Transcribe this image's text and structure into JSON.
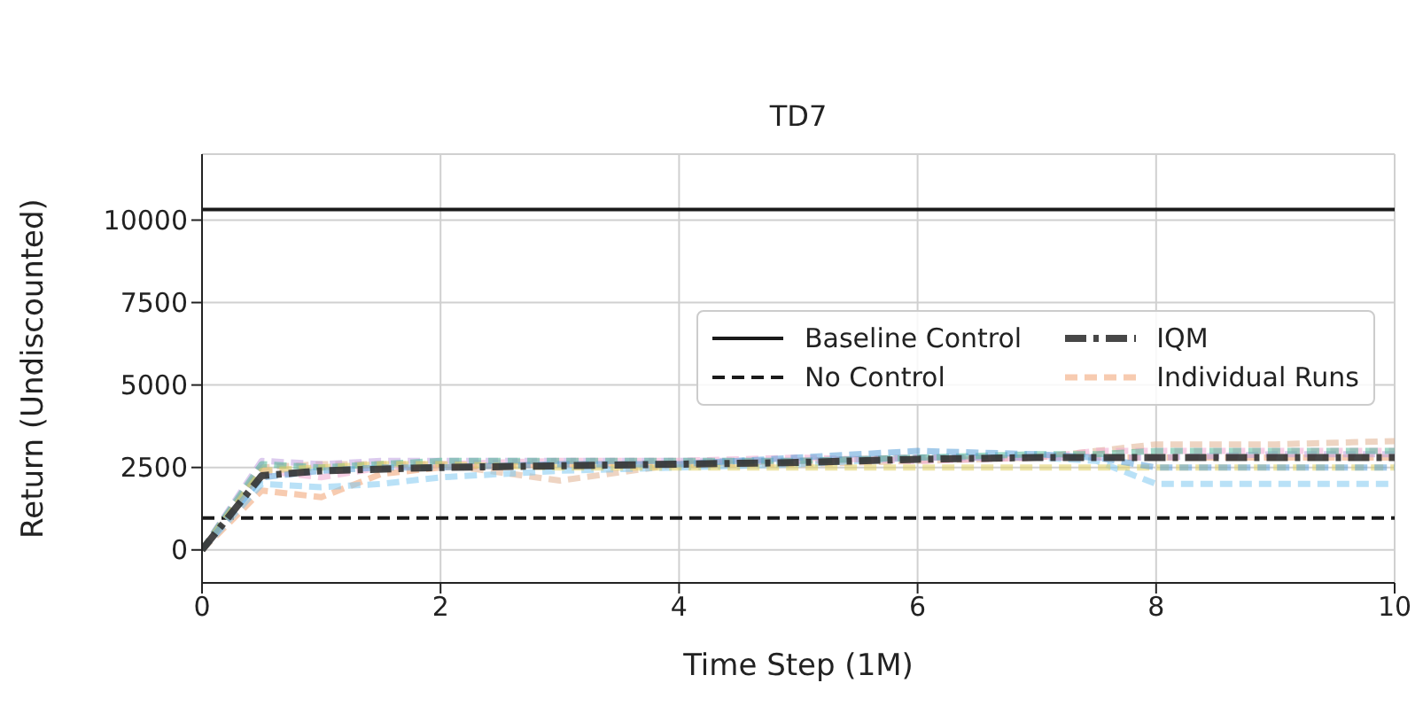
{
  "chart_data": {
    "type": "line",
    "title": "TD7",
    "xlabel": "Time Step (1M)",
    "ylabel": "Return (Undiscounted)",
    "xlim": [
      0,
      10
    ],
    "xticks": [
      0,
      2,
      4,
      6,
      8,
      10
    ],
    "ylim": [
      -1000,
      12000
    ],
    "yticks": [
      0,
      2500,
      5000,
      7500,
      10000
    ],
    "grid": true,
    "legend": "right",
    "marker": "none",
    "series": [
      {
        "name": "Baseline Control",
        "color": "#1a1a1a",
        "line_style": "solid",
        "x": [
          0,
          10
        ],
        "values": [
          10320,
          10320
        ]
      },
      {
        "name": "No Control",
        "color": "#1a1a1a",
        "line_style": "dashed",
        "x": [
          0,
          10
        ],
        "values": [
          970,
          970
        ]
      },
      {
        "name": "IQM",
        "color": "#333333",
        "line_style": "dashed",
        "x": [
          0,
          0.5,
          1,
          2,
          3,
          4,
          5,
          6,
          7,
          8,
          9,
          10
        ],
        "values": [
          0,
          2250,
          2400,
          2500,
          2550,
          2600,
          2650,
          2750,
          2800,
          2800,
          2800,
          2800
        ]
      },
      {
        "name": "Individual Runs",
        "color": "#f0a070",
        "line_style": "dashed",
        "x": [
          0,
          0.5,
          1,
          1.5,
          2,
          3,
          4,
          5,
          6,
          7,
          7.5,
          8,
          9,
          10
        ],
        "values": [
          0,
          1800,
          1600,
          2300,
          2500,
          2600,
          2600,
          2700,
          2800,
          2800,
          2800,
          2800,
          2800,
          2800
        ]
      },
      {
        "color": "#e0b090",
        "line_style": "dashed",
        "x": [
          0,
          0.5,
          1,
          1.5,
          2,
          3,
          4,
          5,
          6,
          7,
          7.5,
          8,
          9,
          10
        ],
        "values": [
          0,
          2500,
          2600,
          2600,
          2600,
          2100,
          2600,
          2600,
          2700,
          2800,
          3000,
          3200,
          3200,
          3300
        ]
      },
      {
        "color": "#80c8f0",
        "line_style": "dashed",
        "x": [
          0,
          0.5,
          1,
          1.5,
          2,
          3,
          4,
          5,
          6,
          7,
          7.5,
          8,
          9,
          10
        ],
        "values": [
          0,
          2000,
          1900,
          2000,
          2200,
          2400,
          2500,
          2600,
          2800,
          2800,
          2700,
          2000,
          2000,
          2000
        ]
      },
      {
        "color": "#f0a8d0",
        "line_style": "dashed",
        "x": [
          0,
          0.5,
          1,
          1.5,
          2,
          3,
          4,
          5,
          6,
          7,
          7.5,
          8,
          9,
          10
        ],
        "values": [
          0,
          2400,
          2200,
          2500,
          2600,
          2700,
          2700,
          2800,
          2700,
          2800,
          3000,
          3000,
          3000,
          3000
        ]
      },
      {
        "color": "#c0a0e0",
        "line_style": "dashed",
        "x": [
          0,
          0.5,
          1,
          1.5,
          2,
          3,
          4,
          5,
          6,
          7,
          7.5,
          8,
          9,
          10
        ],
        "values": [
          0,
          2700,
          2600,
          2700,
          2700,
          2700,
          2700,
          2700,
          2800,
          2800,
          2800,
          2800,
          2900,
          2900
        ]
      },
      {
        "color": "#50b898",
        "line_style": "dashed",
        "x": [
          0,
          0.5,
          1,
          1.5,
          2,
          3,
          4,
          5,
          6,
          7,
          7.5,
          8,
          9,
          10
        ],
        "values": [
          0,
          2600,
          2500,
          2600,
          2700,
          2700,
          2700,
          2700,
          2800,
          2900,
          2900,
          3000,
          3000,
          3000
        ]
      },
      {
        "color": "#e0d060",
        "line_style": "dashed",
        "x": [
          0,
          0.5,
          1,
          1.5,
          2,
          3,
          4,
          5,
          6,
          7,
          7.5,
          8,
          9,
          10
        ],
        "values": [
          0,
          2400,
          2500,
          2600,
          2600,
          2500,
          2500,
          2500,
          2500,
          2500,
          2500,
          2500,
          2500,
          2500
        ]
      },
      {
        "color": "#5aa0d8",
        "line_style": "dashed",
        "x": [
          0,
          0.5,
          1,
          1.5,
          2,
          3,
          4,
          5,
          6,
          7,
          7.5,
          8,
          9,
          10
        ],
        "values": [
          0,
          2200,
          2400,
          2500,
          2500,
          2600,
          2600,
          2800,
          3000,
          2900,
          2800,
          2500,
          2500,
          2500
        ]
      }
    ]
  }
}
